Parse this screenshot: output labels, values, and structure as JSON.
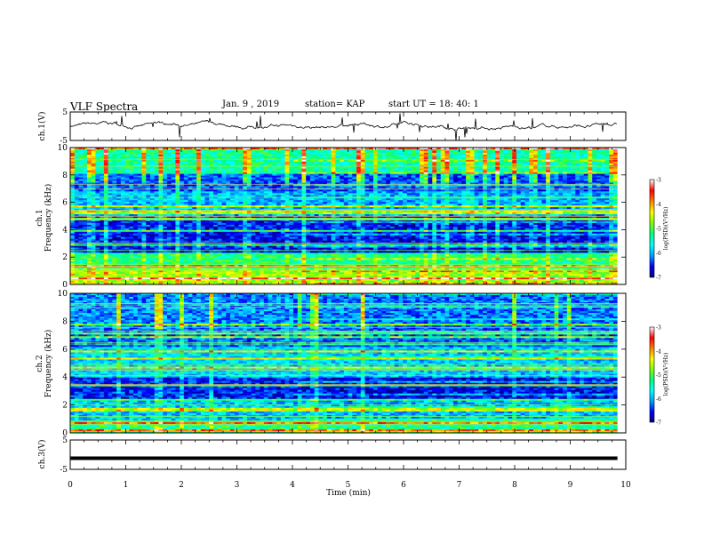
{
  "header": {
    "title": "VLF Spectra",
    "date": "Jan. 9 , 2019",
    "station": "station= KAP",
    "start": "start UT = 18: 40: 1"
  },
  "chart_data": [
    {
      "type": "line",
      "panel": "ch1-waveform",
      "ylabel": "ch.1(V)",
      "ylim": [
        -5,
        5
      ],
      "yticks": [
        "5",
        "-5"
      ],
      "xlim": [
        0,
        10
      ]
    },
    {
      "type": "heatmap",
      "panel": "ch1-spectrogram",
      "ylabel_line1": "ch.1",
      "ylabel_line2": "Frequency (kHz)",
      "ylim": [
        0,
        10
      ],
      "yticks": [
        "0",
        "2",
        "4",
        "6",
        "8",
        "10"
      ],
      "xlim": [
        0,
        10
      ],
      "note_change_time_min": 3.95
    },
    {
      "type": "heatmap",
      "panel": "ch2-spectrogram",
      "ylabel_line1": "ch.2",
      "ylabel_line2": "Frequency (kHz)",
      "ylim": [
        0,
        10
      ],
      "yticks": [
        "0",
        "2",
        "4",
        "6",
        "8",
        "10"
      ],
      "xlim": [
        0,
        10
      ],
      "note_change_time_min": 3.95
    },
    {
      "type": "line",
      "panel": "ch3-waveform",
      "ylabel": "ch.3(V)",
      "ylim": [
        -5,
        5
      ],
      "yticks": [
        "5",
        "-5"
      ],
      "xlim": [
        0,
        10
      ],
      "constant_value": -1.2
    }
  ],
  "xaxis": {
    "label": "Time (min)",
    "ticks": [
      "0",
      "1",
      "2",
      "3",
      "4",
      "5",
      "6",
      "7",
      "8",
      "9",
      "10"
    ],
    "data_end_min": 9.85
  },
  "colorbar": {
    "label": "log(PSD)(V²/Hz)",
    "ticks": [
      "-3",
      "-4",
      "-5",
      "-6",
      "-7"
    ],
    "range": [
      -7,
      -3
    ],
    "colors": [
      "#000080",
      "#0000ff",
      "#00a0ff",
      "#00ffff",
      "#00ff80",
      "#80ff00",
      "#ffff00",
      "#ff8000",
      "#ff0000",
      "#ffffff"
    ]
  }
}
